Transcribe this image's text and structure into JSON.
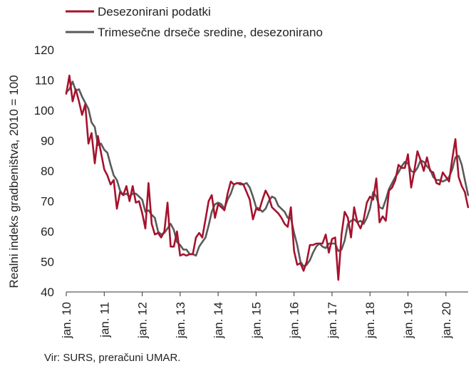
{
  "chart_data": {
    "type": "line",
    "title": "",
    "xlabel": "",
    "ylabel": "Realni indeks gradbeništva, 2010 = 100",
    "ylim": [
      40,
      120
    ],
    "yticks": [
      40,
      50,
      60,
      70,
      80,
      90,
      100,
      110,
      120
    ],
    "x_tick_labels": [
      "jan. 10",
      "jan. 11",
      "jan. 12",
      "jan. 13",
      "jan. 14",
      "jan. 15",
      "jan. 16",
      "jan. 17",
      "jan. 18",
      "jan. 19",
      "jan. 20"
    ],
    "x_start": "2010-01",
    "grid": false,
    "legend_position": "top-left",
    "series": [
      {
        "name": "Desezonirani podatki",
        "color": "#a6122d",
        "values": [
          105.5,
          111.5,
          103,
          107,
          103,
          98.5,
          102,
          89,
          92.5,
          82.5,
          91.5,
          86,
          80.5,
          78.5,
          75.5,
          77,
          67.5,
          73,
          72,
          75,
          70,
          75,
          69.5,
          70,
          66,
          61,
          76,
          62.5,
          59,
          59.5,
          58,
          60,
          69.5,
          55,
          55,
          60,
          52,
          52.5,
          52,
          52.5,
          52.5,
          58,
          59.5,
          58,
          64,
          70,
          72,
          64.5,
          69,
          68,
          67,
          72.5,
          76.5,
          75.5,
          76,
          76,
          75.5,
          73,
          70.5,
          64,
          67.5,
          67,
          70.5,
          73.5,
          71.5,
          68,
          67,
          66,
          64.5,
          62.5,
          61.5,
          68,
          53.5,
          49,
          49.5,
          47,
          50,
          55.5,
          55.5,
          56,
          56,
          56,
          59,
          53,
          57.5,
          58,
          44,
          59,
          66.5,
          64.5,
          58,
          68,
          63,
          61,
          64,
          69.5,
          71.5,
          70.5,
          77.5,
          63,
          65,
          63.5,
          73.5,
          74.5,
          77,
          82,
          81,
          81,
          85.5,
          74.5,
          80,
          86.5,
          83.5,
          80,
          84.5,
          80,
          79.5,
          76,
          75.5,
          79.5,
          78,
          76.5,
          84,
          90.5,
          78,
          75,
          73,
          68
        ]
      },
      {
        "name": "Trimesečne drseče sredine, desezonirano",
        "color": "#5a5a5a",
        "values": [
          106,
          107,
          109.5,
          106.5,
          107,
          104.5,
          102.5,
          100.5,
          96,
          94.5,
          88.5,
          89,
          87,
          86,
          82,
          78.5,
          77,
          73.5,
          72,
          72.5,
          71.5,
          72.5,
          72.5,
          71.5,
          70.5,
          66.5,
          67,
          65.5,
          64.5,
          60,
          59,
          59.5,
          61,
          62.5,
          60.5,
          56.5,
          55.5,
          54,
          54,
          52.5,
          52.5,
          52,
          55,
          56.5,
          58,
          62,
          66.5,
          69,
          69.5,
          69,
          67.5,
          70.5,
          72.5,
          75.5,
          76,
          75.5,
          75.5,
          76,
          74.5,
          71.5,
          68,
          67.5,
          66.5,
          67.5,
          70,
          71.5,
          71,
          68.5,
          67.5,
          66.5,
          64.5,
          64.5,
          59.5,
          55.5,
          50,
          48.5,
          49,
          50.5,
          53,
          55,
          56,
          55,
          54.5,
          56,
          56,
          56,
          53.5,
          54,
          57,
          62.5,
          63.5,
          64,
          63,
          63.5,
          62.5,
          64.5,
          67.5,
          73,
          71.5,
          68,
          67.5,
          70.5,
          74,
          76,
          78,
          79.5,
          81.5,
          83,
          82.5,
          80,
          79.5,
          81,
          83.5,
          83,
          81.5,
          80.5,
          78,
          77,
          77,
          76.5,
          77,
          78,
          80.5,
          84.5,
          85,
          82,
          77,
          72
        ]
      }
    ]
  },
  "source_note": "Vir: SURS, preračuni UMAR."
}
